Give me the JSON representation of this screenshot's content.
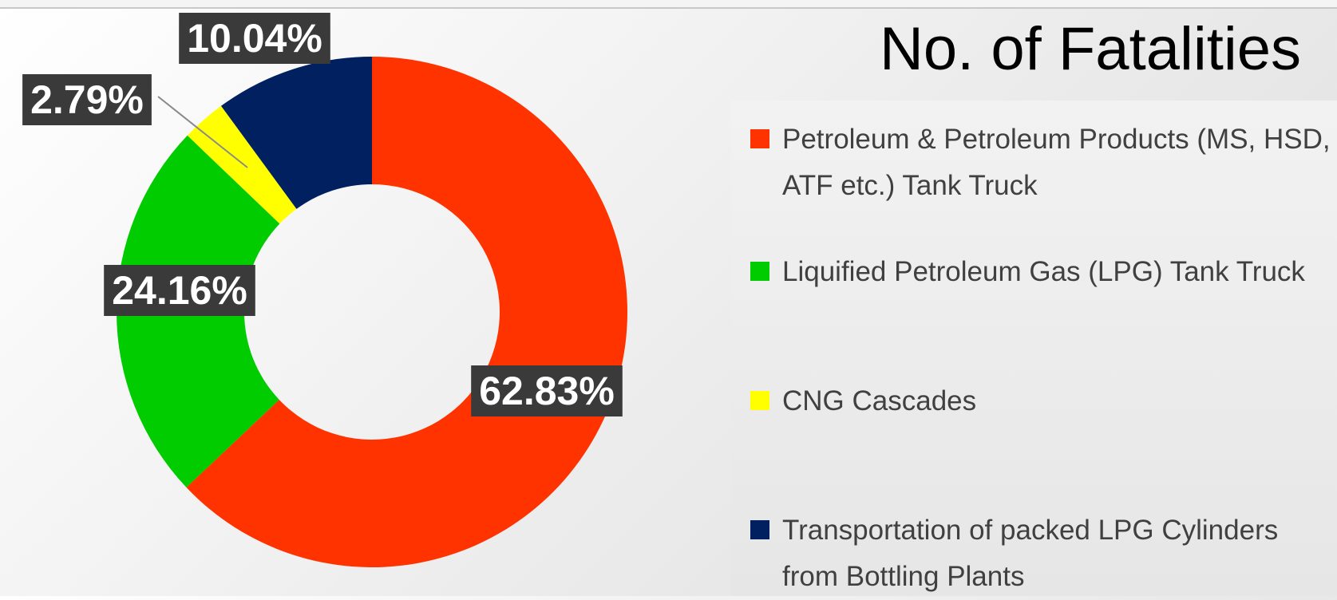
{
  "chart_data": {
    "type": "donut",
    "title": "No. of Fatalities",
    "categories": [
      "Petroleum & Petroleum Products (MS, HSD, ATF etc.) Tank Truck",
      "Liquified Petroleum Gas  (LPG) Tank Truck",
      "CNG Cascades",
      "Transportation of packed LPG Cylinders from Bottling Plants"
    ],
    "values": [
      62.83,
      24.16,
      2.79,
      10.04
    ],
    "value_labels": [
      "62.83%",
      "24.16%",
      "2.79%",
      "10.04%"
    ],
    "colors": [
      "#ff3300",
      "#00cc00",
      "#ffff00",
      "#002060"
    ],
    "legend": "right"
  }
}
